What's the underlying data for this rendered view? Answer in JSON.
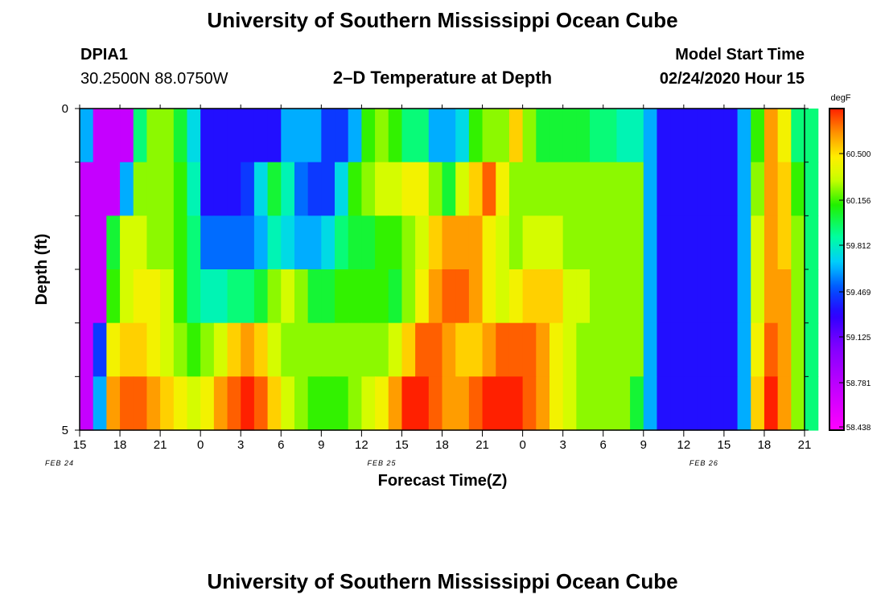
{
  "header": {
    "title": "University of Southern Mississippi Ocean Cube",
    "station_id": "DPIA1",
    "station_coords": "30.2500N 88.0750W",
    "plot_title": "2–D Temperature at Depth",
    "model_start_label": "Model Start Time",
    "model_start_value": "02/24/2020 Hour 15"
  },
  "footer": {
    "title": "University of Southern Mississippi Ocean Cube"
  },
  "chart_data": {
    "type": "heatmap",
    "title": "2–D Temperature at Depth",
    "xlabel": "Forecast Time(Z)",
    "ylabel": "Depth (ft)",
    "x_tick_labels": [
      "15",
      "18",
      "21",
      "0",
      "3",
      "6",
      "9",
      "12",
      "15",
      "18",
      "21",
      "0",
      "3",
      "6",
      "9",
      "12",
      "15",
      "18",
      "21"
    ],
    "date_labels": [
      "FEB 24",
      "FEB 25",
      "FEB 26"
    ],
    "y_tick_labels": [
      "0",
      "5"
    ],
    "ylim": [
      0,
      5
    ],
    "x_hours": [
      0,
      54
    ],
    "colorbar": {
      "unit": "degF",
      "tick_labels": [
        "60.500",
        "60.156",
        "59.812",
        "59.469",
        "59.125",
        "58.781",
        "58.438"
      ],
      "range": [
        58.3,
        60.7
      ]
    },
    "depth_rows_ft": [
      0,
      1,
      2,
      3,
      4,
      5
    ],
    "cell_hours": 1,
    "rows": [
      [
        59.5,
        58.6,
        58.6,
        58.6,
        59.8,
        60.1,
        60.1,
        59.9,
        59.6,
        59.2,
        59.2,
        59.2,
        59.2,
        59.2,
        59.2,
        59.5,
        59.5,
        59.5,
        59.3,
        59.3,
        59.5,
        60.0,
        60.1,
        60.0,
        59.8,
        59.8,
        59.5,
        59.5,
        59.6,
        60.0,
        60.1,
        60.1,
        60.4,
        60.1,
        59.9,
        59.9,
        59.9,
        59.9,
        59.8,
        59.8,
        59.7,
        59.7,
        59.5,
        59.2,
        59.2,
        59.2,
        59.2,
        59.2,
        59.2,
        59.5,
        60.0,
        60.5,
        60.3,
        59.8,
        59.8
      ],
      [
        58.6,
        58.6,
        58.6,
        59.5,
        60.1,
        60.1,
        60.1,
        60.0,
        59.7,
        59.2,
        59.2,
        59.2,
        59.3,
        59.6,
        59.9,
        59.7,
        59.4,
        59.3,
        59.3,
        59.6,
        60.0,
        60.1,
        60.2,
        60.2,
        60.3,
        60.3,
        60.1,
        59.9,
        60.2,
        60.4,
        60.6,
        60.3,
        60.1,
        60.1,
        60.1,
        60.1,
        60.1,
        60.1,
        60.1,
        60.1,
        60.1,
        60.1,
        59.5,
        59.2,
        59.2,
        59.2,
        59.2,
        59.2,
        59.2,
        59.5,
        60.1,
        60.5,
        60.4,
        60.0,
        59.8
      ],
      [
        58.6,
        58.6,
        59.9,
        60.2,
        60.2,
        60.1,
        60.1,
        60.0,
        59.8,
        59.4,
        59.4,
        59.4,
        59.4,
        59.5,
        59.7,
        59.6,
        59.5,
        59.5,
        59.6,
        59.8,
        59.9,
        59.9,
        60.0,
        60.0,
        60.1,
        60.2,
        60.4,
        60.5,
        60.5,
        60.5,
        60.3,
        60.2,
        60.1,
        60.2,
        60.2,
        60.2,
        60.1,
        60.1,
        60.1,
        60.1,
        60.1,
        60.1,
        59.5,
        59.2,
        59.2,
        59.2,
        59.2,
        59.2,
        59.2,
        59.5,
        60.2,
        60.5,
        60.4,
        60.1,
        59.8
      ],
      [
        58.6,
        58.6,
        60.0,
        60.2,
        60.3,
        60.3,
        60.2,
        60.0,
        59.8,
        59.7,
        59.7,
        59.8,
        59.8,
        59.9,
        60.1,
        60.2,
        60.1,
        59.9,
        59.9,
        60.0,
        60.0,
        60.0,
        60.0,
        59.9,
        60.1,
        60.3,
        60.5,
        60.6,
        60.6,
        60.5,
        60.3,
        60.2,
        60.3,
        60.4,
        60.4,
        60.4,
        60.2,
        60.2,
        60.1,
        60.1,
        60.1,
        60.1,
        59.5,
        59.2,
        59.2,
        59.2,
        59.2,
        59.2,
        59.2,
        59.5,
        60.2,
        60.5,
        60.5,
        60.1,
        59.8
      ],
      [
        58.6,
        59.3,
        60.3,
        60.4,
        60.4,
        60.3,
        60.2,
        60.1,
        60.0,
        60.1,
        60.2,
        60.4,
        60.5,
        60.4,
        60.2,
        60.1,
        60.1,
        60.1,
        60.1,
        60.1,
        60.1,
        60.1,
        60.1,
        60.2,
        60.4,
        60.6,
        60.6,
        60.5,
        60.4,
        60.4,
        60.5,
        60.6,
        60.6,
        60.6,
        60.5,
        60.3,
        60.2,
        60.1,
        60.1,
        60.1,
        60.1,
        60.1,
        59.5,
        59.2,
        59.2,
        59.2,
        59.2,
        59.2,
        59.2,
        59.5,
        60.3,
        60.6,
        60.5,
        60.1,
        59.8
      ],
      [
        58.6,
        59.5,
        60.5,
        60.6,
        60.6,
        60.5,
        60.4,
        60.3,
        60.2,
        60.3,
        60.5,
        60.6,
        60.7,
        60.6,
        60.4,
        60.2,
        60.1,
        60.0,
        60.0,
        60.0,
        60.1,
        60.2,
        60.3,
        60.5,
        60.7,
        60.7,
        60.6,
        60.5,
        60.5,
        60.6,
        60.7,
        60.7,
        60.7,
        60.6,
        60.5,
        60.3,
        60.2,
        60.1,
        60.1,
        60.1,
        60.1,
        59.9,
        59.5,
        59.2,
        59.2,
        59.2,
        59.2,
        59.2,
        59.2,
        59.5,
        60.4,
        60.7,
        60.5,
        60.1,
        59.8
      ]
    ]
  }
}
